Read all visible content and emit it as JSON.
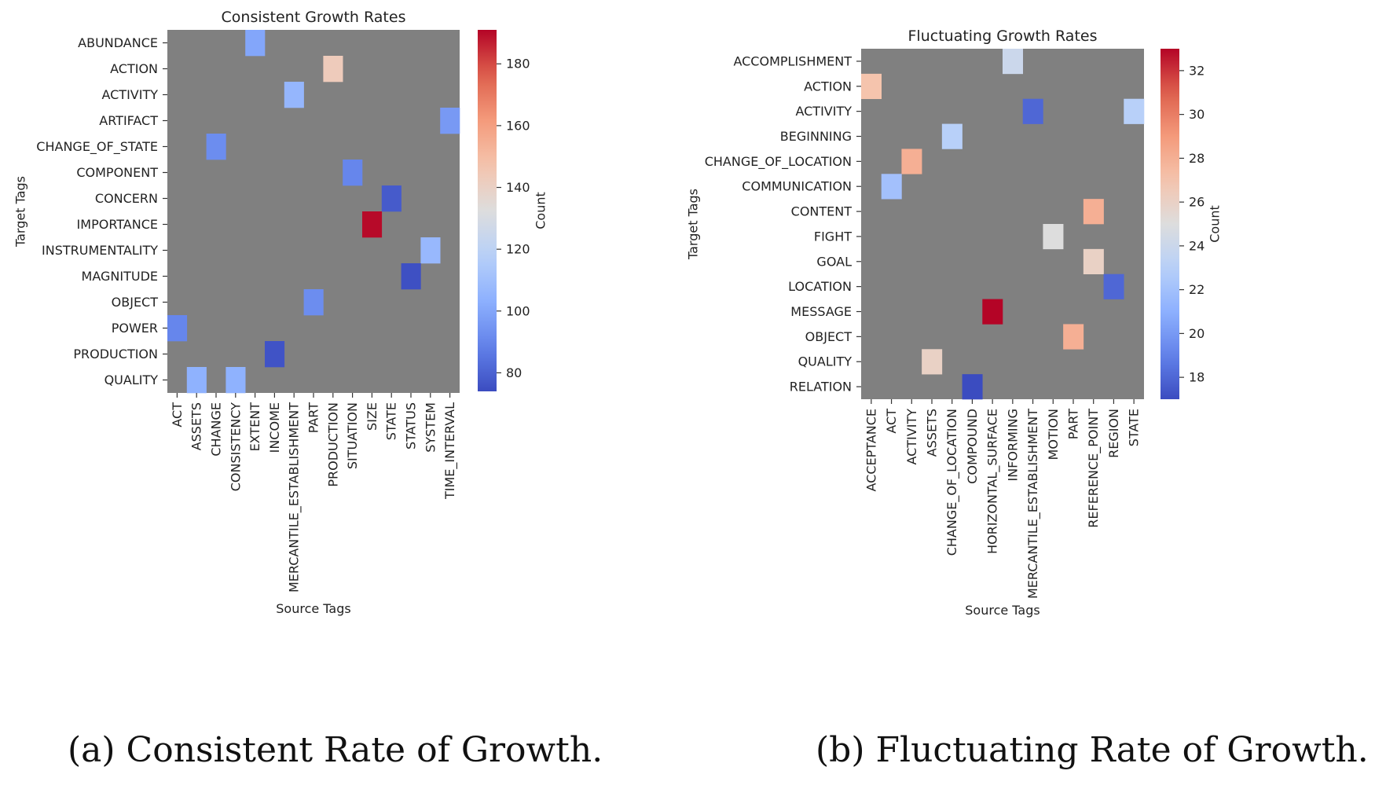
{
  "captions": {
    "a": "(a) Consistent Rate of Growth.",
    "b": "(b) Fluctuating Rate of Growth."
  },
  "chart_data": [
    {
      "type": "heatmap",
      "title": "Consistent Growth Rates",
      "xlabel": "Source Tags",
      "ylabel": "Target Tags",
      "colorbar_label": "Count",
      "colormap": "coolwarm",
      "missing_color": "#808080",
      "vmin": 74,
      "vmax": 191,
      "colorbar_ticks": [
        80,
        100,
        120,
        140,
        160,
        180
      ],
      "x_categories": [
        "ACT",
        "ASSETS",
        "CHANGE",
        "CONSISTENCY",
        "EXTENT",
        "INCOME",
        "MERCANTILE_ESTABLISHMENT",
        "PART",
        "PRODUCTION",
        "SITUATION",
        "SIZE",
        "STATE",
        "STATUS",
        "SYSTEM",
        "TIME_INTERVAL"
      ],
      "y_categories": [
        "ABUNDANCE",
        "ACTION",
        "ACTIVITY",
        "ARTIFACT",
        "CHANGE_OF_STATE",
        "COMPONENT",
        "CONCERN",
        "IMPORTANCE",
        "INSTRUMENTALITY",
        "MAGNITUDE",
        "OBJECT",
        "POWER",
        "PRODUCTION",
        "QUALITY"
      ],
      "cells": [
        {
          "y": "ABUNDANCE",
          "x": "EXTENT",
          "value": 100
        },
        {
          "y": "ACTION",
          "x": "PRODUCTION",
          "value": 143
        },
        {
          "y": "ACTIVITY",
          "x": "MERCANTILE_ESTABLISHMENT",
          "value": 106
        },
        {
          "y": "ARTIFACT",
          "x": "TIME_INTERVAL",
          "value": 96
        },
        {
          "y": "CHANGE_OF_STATE",
          "x": "CHANGE",
          "value": 92
        },
        {
          "y": "COMPONENT",
          "x": "SITUATION",
          "value": 90
        },
        {
          "y": "CONCERN",
          "x": "STATE",
          "value": 78
        },
        {
          "y": "IMPORTANCE",
          "x": "SIZE",
          "value": 190
        },
        {
          "y": "INSTRUMENTALITY",
          "x": "SYSTEM",
          "value": 107
        },
        {
          "y": "MAGNITUDE",
          "x": "STATUS",
          "value": 75
        },
        {
          "y": "OBJECT",
          "x": "PART",
          "value": 92
        },
        {
          "y": "POWER",
          "x": "ACT",
          "value": 90
        },
        {
          "y": "PRODUCTION",
          "x": "INCOME",
          "value": 76
        },
        {
          "y": "QUALITY",
          "x": "ASSETS",
          "value": 104
        },
        {
          "y": "QUALITY",
          "x": "CONSISTENCY",
          "value": 104
        }
      ]
    },
    {
      "type": "heatmap",
      "title": "Fluctuating Growth Rates",
      "xlabel": "Source Tags",
      "ylabel": "Target Tags",
      "colorbar_label": "Count",
      "colormap": "coolwarm",
      "missing_color": "#808080",
      "vmin": 17,
      "vmax": 33,
      "colorbar_ticks": [
        18,
        20,
        22,
        24,
        26,
        28,
        30,
        32
      ],
      "x_categories": [
        "ACCEPTANCE",
        "ACT",
        "ACTIVITY",
        "ASSETS",
        "CHANGE_OF_LOCATION",
        "COMPOUND",
        "HORIZONTAL_SURFACE",
        "INFORMING",
        "MERCANTILE_ESTABLISHMENT",
        "MOTION",
        "PART",
        "REFERENCE_POINT",
        "REGION",
        "STATE"
      ],
      "y_categories": [
        "ACCOMPLISHMENT",
        "ACTION",
        "ACTIVITY",
        "BEGINNING",
        "CHANGE_OF_LOCATION",
        "COMMUNICATION",
        "CONTENT",
        "FIGHT",
        "GOAL",
        "LOCATION",
        "MESSAGE",
        "OBJECT",
        "QUALITY",
        "RELATION"
      ],
      "cells": [
        {
          "y": "ACCOMPLISHMENT",
          "x": "INFORMING",
          "value": 24
        },
        {
          "y": "ACTION",
          "x": "ACCEPTANCE",
          "value": 27
        },
        {
          "y": "ACTIVITY",
          "x": "MERCANTILE_ESTABLISHMENT",
          "value": 18
        },
        {
          "y": "ACTIVITY",
          "x": "STATE",
          "value": 23
        },
        {
          "y": "BEGINNING",
          "x": "CHANGE_OF_LOCATION",
          "value": 23
        },
        {
          "y": "CHANGE_OF_LOCATION",
          "x": "ACTIVITY",
          "value": 28
        },
        {
          "y": "COMMUNICATION",
          "x": "ACT",
          "value": 22
        },
        {
          "y": "CONTENT",
          "x": "REFERENCE_POINT",
          "value": 28
        },
        {
          "y": "FIGHT",
          "x": "MOTION",
          "value": 25
        },
        {
          "y": "GOAL",
          "x": "REFERENCE_POINT",
          "value": 26
        },
        {
          "y": "LOCATION",
          "x": "REGION",
          "value": 18
        },
        {
          "y": "MESSAGE",
          "x": "HORIZONTAL_SURFACE",
          "value": 33
        },
        {
          "y": "OBJECT",
          "x": "PART",
          "value": 28
        },
        {
          "y": "QUALITY",
          "x": "ASSETS",
          "value": 26
        },
        {
          "y": "RELATION",
          "x": "COMPOUND",
          "value": 17
        }
      ]
    }
  ]
}
